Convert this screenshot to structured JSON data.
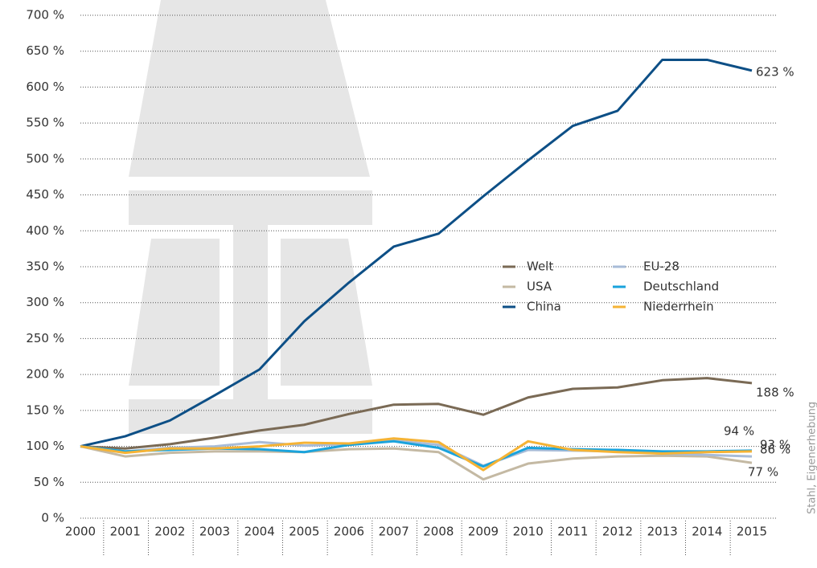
{
  "chart_data": {
    "type": "line",
    "categories": [
      "2000",
      "2001",
      "2002",
      "2003",
      "2004",
      "2005",
      "2006",
      "2007",
      "2008",
      "2009",
      "2010",
      "2011",
      "2012",
      "2013",
      "2014",
      "2015"
    ],
    "series": [
      {
        "name": "Welt",
        "color": "#7a6a55",
        "values": [
          100,
          97,
          103,
          112,
          122,
          130,
          145,
          158,
          159,
          144,
          168,
          180,
          182,
          192,
          195,
          188
        ],
        "value_labels": [
          null,
          null,
          null,
          null,
          null,
          null,
          null,
          null,
          null,
          null,
          null,
          null,
          null,
          null,
          null,
          "188 %"
        ]
      },
      {
        "name": "USA",
        "color": "#c4b9a3",
        "values": [
          100,
          86,
          91,
          93,
          93,
          92,
          96,
          97,
          92,
          54,
          76,
          83,
          86,
          87,
          86,
          77
        ],
        "value_labels": [
          null,
          null,
          null,
          null,
          null,
          null,
          null,
          null,
          null,
          null,
          null,
          null,
          null,
          null,
          null,
          "77 %"
        ]
      },
      {
        "name": "China",
        "color": "#0d4f86",
        "values": [
          100,
          114,
          136,
          171,
          207,
          274,
          328,
          378,
          396,
          448,
          498,
          546,
          567,
          638,
          638,
          623
        ],
        "value_labels": [
          null,
          null,
          null,
          null,
          null,
          null,
          null,
          null,
          null,
          null,
          null,
          null,
          null,
          null,
          null,
          "623 %"
        ]
      },
      {
        "name": "EU-28",
        "color": "#a8bcd8",
        "values": [
          100,
          93,
          98,
          100,
          106,
          101,
          103,
          108,
          102,
          73,
          95,
          94,
          93,
          90,
          88,
          86
        ],
        "value_labels": [
          null,
          null,
          null,
          null,
          null,
          null,
          null,
          null,
          null,
          null,
          null,
          null,
          null,
          null,
          null,
          "86 %"
        ]
      },
      {
        "name": "Deutschland",
        "color": "#1aa3dc",
        "values": [
          100,
          93,
          95,
          97,
          96,
          92,
          102,
          107,
          98,
          72,
          98,
          96,
          95,
          93,
          93,
          94
        ],
        "value_labels": [
          null,
          null,
          null,
          null,
          null,
          null,
          null,
          null,
          null,
          null,
          null,
          null,
          null,
          null,
          null,
          "94 %"
        ]
      },
      {
        "name": "Niederrhein",
        "color": "#f5b335",
        "values": [
          100,
          91,
          97,
          97,
          100,
          105,
          104,
          111,
          106,
          67,
          107,
          95,
          92,
          90,
          92,
          93
        ],
        "value_labels": [
          null,
          null,
          null,
          null,
          null,
          null,
          null,
          null,
          null,
          null,
          null,
          null,
          null,
          null,
          null,
          "93 %"
        ]
      }
    ],
    "ylim": [
      0,
      700
    ],
    "yticks": [
      {
        "value": 0,
        "label": "0 %"
      },
      {
        "value": 50,
        "label": "50 %"
      },
      {
        "value": 100,
        "label": "100 %"
      },
      {
        "value": 150,
        "label": "150 %"
      },
      {
        "value": 200,
        "label": "200 %"
      },
      {
        "value": 250,
        "label": "250 %"
      },
      {
        "value": 300,
        "label": "300 %"
      },
      {
        "value": 350,
        "label": "350 %"
      },
      {
        "value": 400,
        "label": "400 %"
      },
      {
        "value": 450,
        "label": "450 %"
      },
      {
        "value": 500,
        "label": "500 %"
      },
      {
        "value": 550,
        "label": "550 %"
      },
      {
        "value": 600,
        "label": "600 %"
      },
      {
        "value": 650,
        "label": "650 %"
      },
      {
        "value": 700,
        "label": "700 %"
      }
    ],
    "grid": true,
    "source": "Stahl, Eigenerhebung"
  }
}
